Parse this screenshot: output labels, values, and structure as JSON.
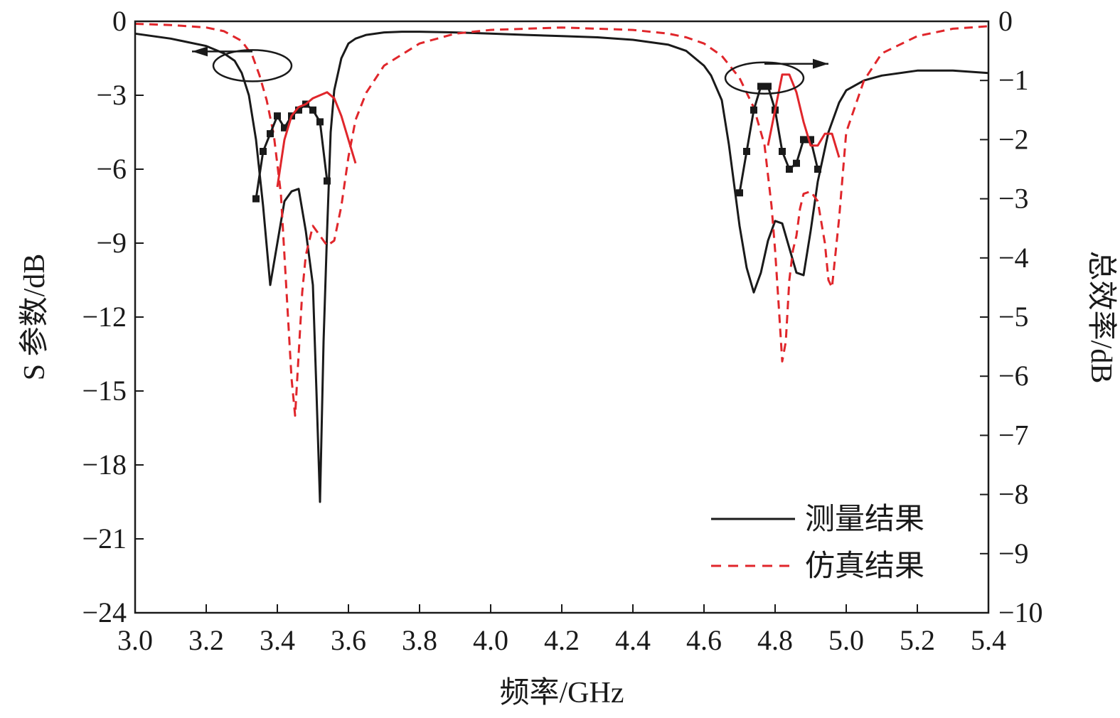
{
  "chart_data": {
    "type": "line",
    "xlabel": "频率/GHz",
    "ylabel_left": "S 参数/dB",
    "ylabel_right": "总效率/dB",
    "xlim": [
      3.0,
      5.4
    ],
    "ylim_left": [
      -24,
      0
    ],
    "ylim_right": [
      -10,
      0
    ],
    "x_ticks": [
      "3.0",
      "3.2",
      "3.4",
      "3.6",
      "3.8",
      "4.0",
      "4.2",
      "4.4",
      "4.6",
      "4.8",
      "5.0",
      "5.2",
      "5.4"
    ],
    "y_left_ticks": [
      "0",
      "−3",
      "−6",
      "−9",
      "−12",
      "−15",
      "−18",
      "−21",
      "−24"
    ],
    "y_right_ticks": [
      "0",
      "−1",
      "−2",
      "−3",
      "−4",
      "−5",
      "−6",
      "−7",
      "−8",
      "−9",
      "−10"
    ],
    "colors": {
      "measured": "#1a1a1a",
      "simulated": "#e0262b"
    },
    "legend": [
      {
        "label": "测量结果",
        "style": "solid",
        "color": "#1a1a1a"
      },
      {
        "label": "仿真结果",
        "style": "dashed",
        "color": "#e0262b"
      }
    ],
    "legend_position": "bottom-right",
    "annotations": [
      {
        "type": "ellipse-arrow",
        "points_to": "left-axis",
        "near_x": 3.33,
        "near_y_left": -1.8
      },
      {
        "type": "ellipse-arrow",
        "points_to": "right-axis",
        "near_x": 4.77,
        "near_y_left": -2.3
      }
    ],
    "series": [
      {
        "name": "测量结果",
        "axis": "left",
        "style": "solid",
        "color": "#1a1a1a",
        "x": [
          3.0,
          3.05,
          3.1,
          3.15,
          3.2,
          3.25,
          3.28,
          3.3,
          3.32,
          3.34,
          3.36,
          3.38,
          3.4,
          3.42,
          3.44,
          3.46,
          3.48,
          3.5,
          3.51,
          3.52,
          3.53,
          3.54,
          3.55,
          3.56,
          3.58,
          3.6,
          3.62,
          3.65,
          3.7,
          3.75,
          3.8,
          3.9,
          4.0,
          4.1,
          4.2,
          4.3,
          4.4,
          4.5,
          4.55,
          4.6,
          4.62,
          4.65,
          4.67,
          4.7,
          4.72,
          4.74,
          4.76,
          4.78,
          4.8,
          4.82,
          4.84,
          4.86,
          4.88,
          4.9,
          4.92,
          4.95,
          4.98,
          5.0,
          5.05,
          5.1,
          5.2,
          5.3,
          5.4
        ],
        "y": [
          -0.5,
          -0.6,
          -0.7,
          -0.85,
          -1.0,
          -1.3,
          -1.6,
          -2.1,
          -3.0,
          -4.8,
          -7.5,
          -10.7,
          -9.0,
          -7.3,
          -6.9,
          -6.8,
          -8.5,
          -10.7,
          -15.0,
          -19.5,
          -13.0,
          -8.5,
          -4.5,
          -2.8,
          -1.5,
          -0.9,
          -0.7,
          -0.55,
          -0.45,
          -0.42,
          -0.42,
          -0.45,
          -0.5,
          -0.55,
          -0.6,
          -0.65,
          -0.75,
          -0.95,
          -1.2,
          -1.8,
          -2.2,
          -3.2,
          -5.0,
          -8.3,
          -10.0,
          -11.0,
          -10.2,
          -8.9,
          -8.1,
          -8.2,
          -9.2,
          -10.2,
          -10.3,
          -8.5,
          -6.5,
          -4.5,
          -3.3,
          -2.8,
          -2.4,
          -2.2,
          -2.0,
          -2.0,
          -2.1
        ]
      },
      {
        "name": "仿真结果",
        "axis": "left",
        "style": "dashed",
        "color": "#e0262b",
        "x": [
          3.0,
          3.1,
          3.2,
          3.25,
          3.3,
          3.33,
          3.35,
          3.37,
          3.39,
          3.41,
          3.42,
          3.43,
          3.44,
          3.45,
          3.46,
          3.47,
          3.48,
          3.5,
          3.52,
          3.54,
          3.56,
          3.58,
          3.6,
          3.62,
          3.65,
          3.7,
          3.8,
          3.9,
          4.0,
          4.1,
          4.2,
          4.3,
          4.4,
          4.5,
          4.55,
          4.6,
          4.65,
          4.7,
          4.74,
          4.77,
          4.79,
          4.8,
          4.81,
          4.82,
          4.83,
          4.84,
          4.85,
          4.86,
          4.87,
          4.88,
          4.9,
          4.92,
          4.94,
          4.95,
          4.96,
          4.98,
          5.0,
          5.05,
          5.1,
          5.2,
          5.3,
          5.4
        ],
        "y": [
          -0.1,
          -0.15,
          -0.25,
          -0.4,
          -0.8,
          -1.4,
          -2.2,
          -3.2,
          -4.6,
          -7.0,
          -9.5,
          -12.0,
          -14.5,
          -16.0,
          -13.5,
          -11.0,
          -9.5,
          -8.3,
          -8.7,
          -9.1,
          -8.9,
          -7.5,
          -5.5,
          -4.0,
          -2.9,
          -1.8,
          -0.9,
          -0.5,
          -0.35,
          -0.3,
          -0.25,
          -0.3,
          -0.35,
          -0.5,
          -0.65,
          -0.9,
          -1.4,
          -2.3,
          -3.5,
          -5.0,
          -7.5,
          -9.3,
          -11.5,
          -13.8,
          -13.0,
          -10.5,
          -9.3,
          -8.7,
          -7.6,
          -7.0,
          -6.9,
          -7.3,
          -9.0,
          -10.5,
          -10.8,
          -8.0,
          -4.5,
          -2.4,
          -1.3,
          -0.6,
          -0.3,
          -0.2
        ]
      },
      {
        "name": "",
        "axis": "right",
        "style": "solid-markers",
        "color": "#1a1a1a",
        "x": [
          3.34,
          3.36,
          3.38,
          3.4,
          3.42,
          3.44,
          3.46,
          3.48,
          3.5,
          3.52,
          3.54,
          4.7,
          4.72,
          4.74,
          4.76,
          4.78,
          4.8,
          4.82,
          4.84,
          4.86,
          4.88,
          4.9,
          4.92
        ],
        "y": [
          -3.0,
          -2.2,
          -1.9,
          -1.6,
          -1.8,
          -1.6,
          -1.5,
          -1.4,
          -1.5,
          -1.7,
          -2.7,
          -2.9,
          -2.2,
          -1.5,
          -1.1,
          -1.1,
          -1.5,
          -2.2,
          -2.5,
          -2.4,
          -2.0,
          -2.0,
          -2.5
        ]
      },
      {
        "name": "",
        "axis": "right",
        "style": "solid",
        "color": "#e0262b",
        "x": [
          3.4,
          3.42,
          3.44,
          3.46,
          3.48,
          3.5,
          3.52,
          3.54,
          3.56,
          3.58,
          3.6,
          3.62,
          4.78,
          4.8,
          4.82,
          4.84,
          4.86,
          4.88,
          4.9,
          4.92,
          4.94,
          4.96,
          4.98
        ],
        "y": [
          -2.8,
          -2.0,
          -1.6,
          -1.45,
          -1.4,
          -1.3,
          -1.25,
          -1.2,
          -1.3,
          -1.6,
          -2.0,
          -2.4,
          -2.1,
          -1.5,
          -0.9,
          -0.9,
          -1.2,
          -1.7,
          -2.1,
          -2.1,
          -1.9,
          -1.9,
          -2.3
        ]
      }
    ]
  }
}
